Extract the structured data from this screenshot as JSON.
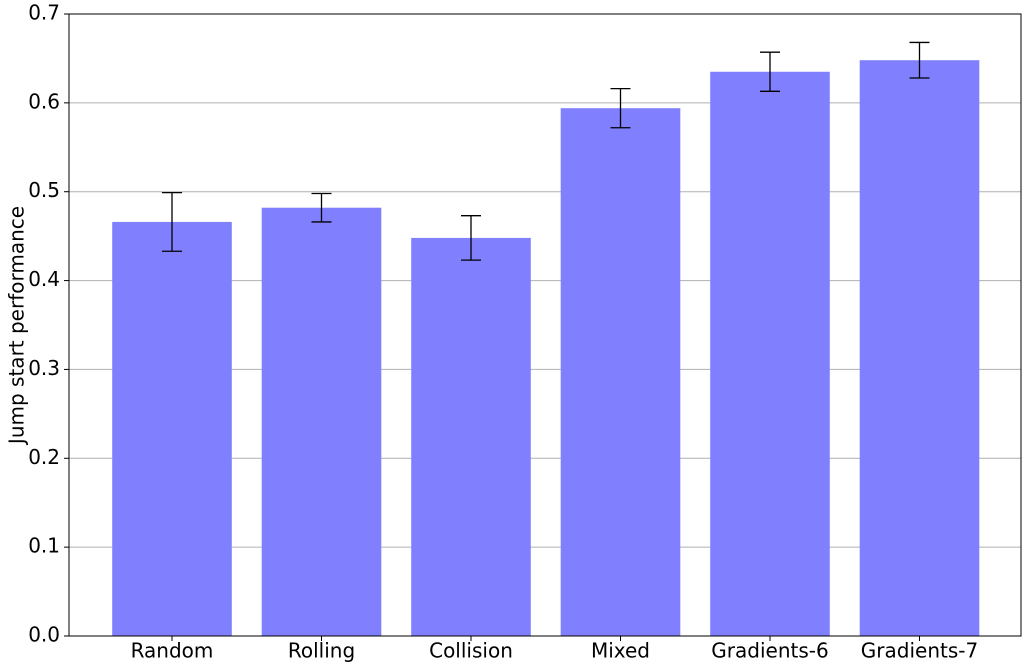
{
  "chart_data": {
    "type": "bar",
    "ylabel": "Jump start performance",
    "categories": [
      "Random",
      "Rolling",
      "Collision",
      "Mixed",
      "Gradients-6",
      "Gradients-7"
    ],
    "values": [
      0.466,
      0.482,
      0.448,
      0.594,
      0.635,
      0.648
    ],
    "errors": [
      0.033,
      0.016,
      0.025,
      0.022,
      0.022,
      0.02
    ],
    "color": "#8080ff",
    "ylim": [
      0,
      0.7
    ],
    "yticks": [
      {
        "value": 0,
        "label": "0.0"
      },
      0.1,
      0.2,
      0.3,
      0.4,
      0.5,
      0.6,
      0.7
    ],
    "grid": true
  }
}
